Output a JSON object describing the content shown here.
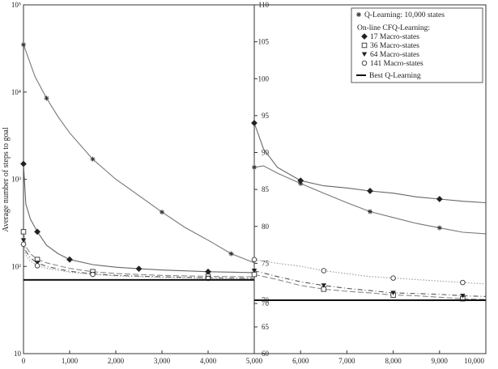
{
  "chart_data": [
    {
      "type": "line",
      "panel": "left",
      "ylabel": "Average number of steps to goal",
      "yscale": "log",
      "xlim": [
        0,
        5000
      ],
      "ylim": [
        10,
        100000
      ],
      "x_ticks": [
        "0",
        "1,000",
        "2,000",
        "3,000",
        "4,000",
        "5,000"
      ],
      "y_ticks": [
        "10",
        "10²",
        "10³",
        "10⁴",
        "10⁵"
      ],
      "grid": false,
      "series": [
        {
          "name": "Q-Learning: 10,000 states",
          "marker": "asterisk",
          "style": "solid",
          "color": "#777777",
          "x": [
            0,
            100,
            250,
            500,
            750,
            1000,
            1500,
            2000,
            2500,
            3000,
            3500,
            4000,
            4500,
            5000
          ],
          "y": [
            35000,
            25000,
            15000,
            8500,
            5200,
            3400,
            1700,
            1000,
            650,
            420,
            280,
            200,
            140,
            110
          ]
        },
        {
          "name": "17 Macro-states",
          "marker": "diamond",
          "style": "solid",
          "color": "#666666",
          "x": [
            0,
            50,
            150,
            300,
            500,
            750,
            1000,
            1500,
            2000,
            2500,
            3000,
            3500,
            4000,
            4500,
            5000
          ],
          "y": [
            1500,
            520,
            350,
            250,
            175,
            140,
            120,
            105,
            98,
            94,
            91,
            89,
            87,
            86,
            85
          ]
        },
        {
          "name": "36 Macro-states",
          "marker": "square",
          "style": "dashed",
          "color": "#888888",
          "x": [
            0,
            50,
            150,
            300,
            500,
            1000,
            1500,
            2000,
            3000,
            4000,
            5000
          ],
          "y": [
            250,
            170,
            140,
            120,
            110,
            95,
            87,
            83,
            79,
            77,
            76
          ]
        },
        {
          "name": "64 Macro-states",
          "marker": "triangle-down",
          "style": "dashdot",
          "color": "#555555",
          "x": [
            0,
            50,
            150,
            300,
            500,
            1000,
            1500,
            2000,
            3000,
            4000,
            5000
          ],
          "y": [
            200,
            150,
            125,
            110,
            100,
            88,
            82,
            79,
            76,
            74,
            73
          ]
        },
        {
          "name": "141 Macro-states",
          "marker": "circle",
          "style": "dotted",
          "color": "#999999",
          "x": [
            0,
            50,
            150,
            300,
            500,
            1000,
            1500,
            2000,
            3000,
            4000,
            5000
          ],
          "y": [
            180,
            135,
            115,
            102,
            95,
            86,
            81,
            78,
            75,
            73,
            72
          ]
        },
        {
          "name": "Best Q-Learning",
          "marker": "none",
          "style": "solid-bold",
          "color": "#111111",
          "x": [
            0,
            5000
          ],
          "y": [
            70,
            70
          ]
        }
      ]
    },
    {
      "type": "line",
      "panel": "right",
      "xlim": [
        5000,
        10000
      ],
      "ylim_upper": [
        70,
        110
      ],
      "ylim_lower": [
        60,
        70
      ],
      "x_ticks": [
        "5,000",
        "6,000",
        "7,000",
        "8,000",
        "9,000",
        "10,000"
      ],
      "y_ticks_upper": [
        "70",
        "75",
        "80",
        "85",
        "90",
        "95",
        "100",
        "105",
        "110"
      ],
      "y_ticks_lower": [
        "60",
        "65",
        "70"
      ],
      "legend": {
        "placement": "top-right",
        "entries": [
          {
            "label": "Q-Learning: 10,000 states",
            "marker": "asterisk"
          },
          {
            "label": "On-line CFQ-Learning:",
            "marker": "none"
          },
          {
            "label": "17 Macro-states",
            "marker": "diamond"
          },
          {
            "label": "36 Macro-states",
            "marker": "square"
          },
          {
            "label": "64 Macro-states",
            "marker": "triangle-down"
          },
          {
            "label": "141 Macro-states",
            "marker": "circle"
          },
          {
            "label": "Best Q-Learning",
            "marker": "line"
          }
        ]
      },
      "series": [
        {
          "name": "Q-Learning: 10,000 states",
          "marker": "asterisk",
          "style": "solid",
          "color": "#777777",
          "x": [
            5000,
            5200,
            5500,
            6000,
            6500,
            7000,
            7500,
            8000,
            8500,
            9000,
            9500,
            10000
          ],
          "y": [
            88,
            88.2,
            87.2,
            85.8,
            84.5,
            83.2,
            82,
            81.2,
            80.4,
            79.8,
            79.2,
            79
          ]
        },
        {
          "name": "17 Macro-states",
          "marker": "diamond",
          "style": "solid",
          "color": "#666666",
          "x": [
            5000,
            5200,
            5500,
            6000,
            6500,
            7000,
            7500,
            8000,
            8500,
            9000,
            9500,
            10000
          ],
          "y": [
            94,
            90.5,
            88,
            86.2,
            85.5,
            85.2,
            84.8,
            84.5,
            84,
            83.7,
            83.4,
            83.2
          ]
        },
        {
          "name": "36 Macro-states",
          "marker": "square",
          "style": "dashed",
          "color": "#888888",
          "x": [
            5000,
            5500,
            6000,
            6500,
            7000,
            7500,
            8000,
            8500,
            9000,
            9500,
            10000
          ],
          "y": [
            73.5,
            72.8,
            72,
            71.5,
            71.2,
            71,
            70.7,
            70.6,
            70.4,
            70.2,
            70.1
          ]
        },
        {
          "name": "64 Macro-states",
          "marker": "triangle-down",
          "style": "dashdot",
          "color": "#555555",
          "x": [
            5000,
            5500,
            6000,
            6500,
            7000,
            7500,
            8000,
            8500,
            9000,
            9500,
            10000
          ],
          "y": [
            74,
            73.2,
            72.5,
            72,
            71.6,
            71.3,
            71,
            70.9,
            70.8,
            70.6,
            70.5
          ]
        },
        {
          "name": "141 Macro-states",
          "marker": "circle",
          "style": "dotted",
          "color": "#999999",
          "x": [
            5000,
            5500,
            6000,
            6500,
            7000,
            7500,
            8000,
            8500,
            9000,
            9500,
            10000
          ],
          "y": [
            75.5,
            75,
            74.6,
            74,
            73.6,
            73.2,
            73,
            72.8,
            72.6,
            72.4,
            72.2
          ]
        },
        {
          "name": "Best Q-Learning",
          "marker": "none",
          "style": "solid-bold",
          "color": "#111111",
          "x": [
            5000,
            10000
          ],
          "y": [
            70,
            70
          ]
        }
      ]
    }
  ]
}
